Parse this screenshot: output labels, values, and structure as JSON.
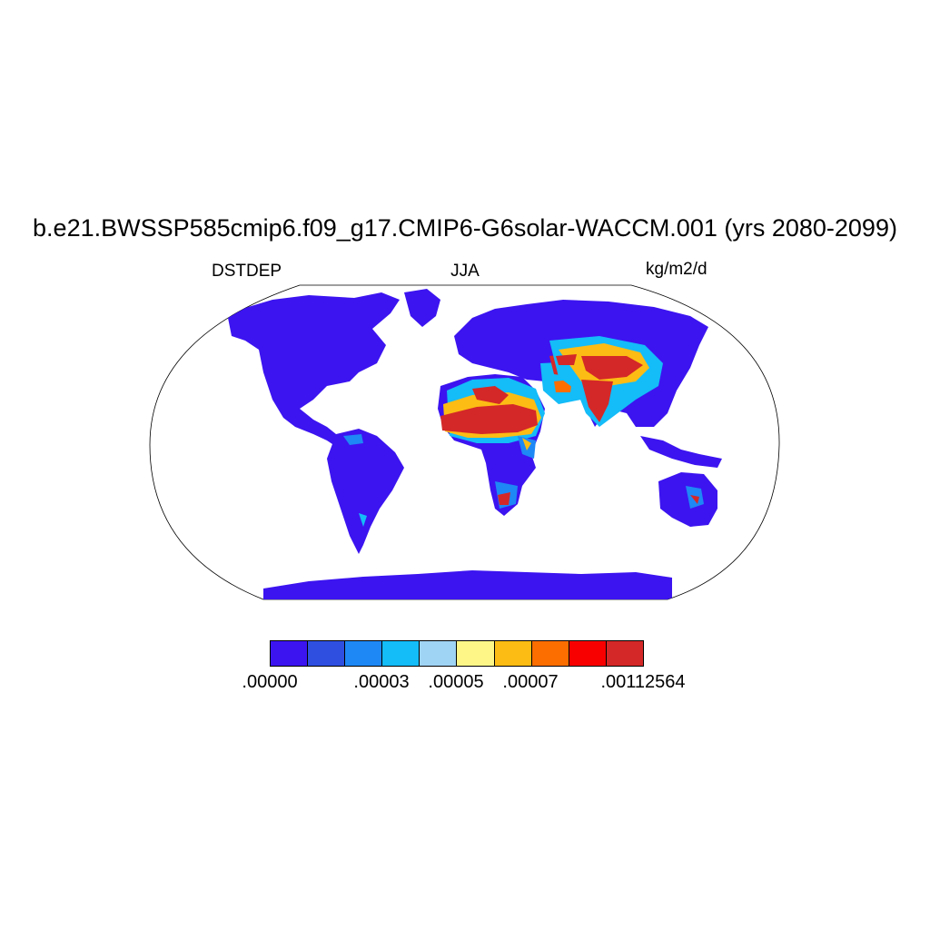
{
  "title": "b.e21.BWSSP585cmip6.f09_g17.CMIP6-G6solar-WACCM.001 (yrs 2080-2099)",
  "left_label": "DSTDEP",
  "center_label": "JJA",
  "right_label": "kg/m2/d",
  "colorbar": {
    "colors": [
      "#3c14f0",
      "#2e4fe0",
      "#1e88f5",
      "#14bcf8",
      "#a0d4f4",
      "#fef788",
      "#fcbc14",
      "#fc6e00",
      "#f80000",
      "#d42828"
    ],
    "tick_labels": [
      ".00000",
      ".00003",
      ".00005",
      ".00007",
      ".00112564"
    ]
  },
  "map_colors": {
    "ocean": "#ffffff",
    "base_land": "#3c14f0",
    "coast": "#000000"
  }
}
